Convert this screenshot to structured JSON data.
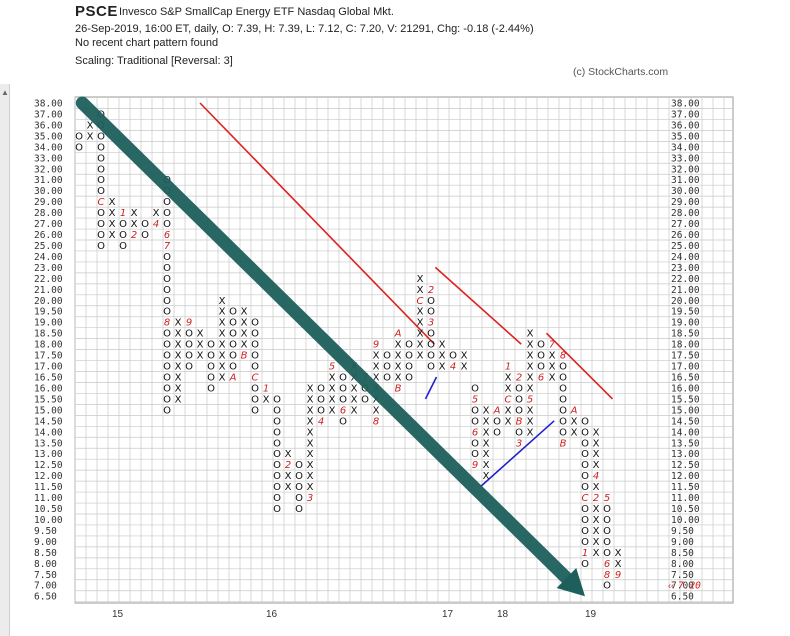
{
  "header": {
    "symbol": "PSCE",
    "description": "Invesco S&P SmallCap Energy ETF  Nasdaq Global Mkt.",
    "line1": "26-Sep-2019, 16:00 ET, daily, O: 7.39, H: 7.39, L: 7.12, C: 7.20, V: 21291, Chg: -0.18 (-2.44%)",
    "line2": "No recent chart pattern found",
    "line3": "Scaling: Traditional [Reversal: 3]",
    "copyright": "(c) StockCharts.com"
  },
  "icons": {
    "left_tab": "caret-up-icon"
  },
  "chart_data": {
    "type": "point-and-figure",
    "title": "PSCE",
    "reversal": 3,
    "scaling": "Traditional",
    "y_ticks": [
      "38.00",
      "37.00",
      "36.00",
      "35.00",
      "34.00",
      "33.00",
      "32.00",
      "31.00",
      "30.00",
      "29.00",
      "28.00",
      "27.00",
      "26.00",
      "25.00",
      "24.00",
      "23.00",
      "22.00",
      "21.00",
      "20.00",
      "19.50",
      "19.00",
      "18.50",
      "18.00",
      "17.50",
      "17.00",
      "16.50",
      "16.00",
      "15.50",
      "15.00",
      "14.50",
      "14.00",
      "13.50",
      "13.00",
      "12.50",
      "12.00",
      "11.50",
      "11.00",
      "10.50",
      "10.00",
      "9.50",
      "9.00",
      "8.50",
      "8.00",
      "7.50",
      "7.00",
      "6.50"
    ],
    "x_labels": [
      {
        "label": "15",
        "col": 3
      },
      {
        "label": "16",
        "col": 17
      },
      {
        "label": "17",
        "col": 33
      },
      {
        "label": "18",
        "col": 38
      },
      {
        "label": "19",
        "col": 46
      }
    ],
    "last_price_label": "7.20",
    "last_price_level": 44,
    "columns": [
      {
        "type": "O",
        "top": 35.0,
        "bottom": 34.0,
        "marks": {}
      },
      {
        "type": "X",
        "top": 36.0,
        "bottom": 35.0,
        "marks": {}
      },
      {
        "type": "O",
        "top": 37.0,
        "bottom": 25.0,
        "marks": {
          "29.00": "C"
        }
      },
      {
        "type": "X",
        "top": 29.0,
        "bottom": 26.0,
        "marks": {}
      },
      {
        "type": "O",
        "top": 28.0,
        "bottom": 25.0,
        "marks": {
          "28.00": "1"
        }
      },
      {
        "type": "X",
        "top": 28.0,
        "bottom": 26.0,
        "marks": {
          "26.00": "2"
        }
      },
      {
        "type": "O",
        "top": 27.0,
        "bottom": 26.0,
        "marks": {
          "28.00": "3"
        }
      },
      {
        "type": "X",
        "top": 28.0,
        "bottom": 27.0,
        "marks": {
          "27.00": "4"
        }
      },
      {
        "type": "O",
        "top": 31.0,
        "bottom": 15.0,
        "marks": {
          "26.00": "6",
          "25.00": "7",
          "19.00": "8"
        }
      },
      {
        "type": "X",
        "top": 19.0,
        "bottom": 15.5,
        "marks": {}
      },
      {
        "type": "O",
        "top": 19.0,
        "bottom": 17.0,
        "marks": {
          "19.00": "9"
        }
      },
      {
        "type": "X",
        "top": 18.5,
        "bottom": 17.5,
        "marks": {}
      },
      {
        "type": "O",
        "top": 18.0,
        "bottom": 16.0,
        "marks": {}
      },
      {
        "type": "X",
        "top": 20.0,
        "bottom": 16.5,
        "marks": {}
      },
      {
        "type": "O",
        "top": 19.5,
        "bottom": 16.5,
        "marks": {
          "16.50": "A"
        }
      },
      {
        "type": "X",
        "top": 19.5,
        "bottom": 17.5,
        "marks": {
          "17.50": "B"
        }
      },
      {
        "type": "O",
        "top": 19.0,
        "bottom": 15.0,
        "marks": {
          "16.50": "C"
        }
      },
      {
        "type": "X",
        "top": 16.0,
        "bottom": 15.5,
        "marks": {
          "16.00": "1"
        }
      },
      {
        "type": "O",
        "top": 15.5,
        "bottom": 10.5,
        "marks": {}
      },
      {
        "type": "X",
        "top": 13.0,
        "bottom": 11.5,
        "marks": {
          "12.50": "2"
        }
      },
      {
        "type": "O",
        "top": 12.5,
        "bottom": 10.5,
        "marks": {}
      },
      {
        "type": "X",
        "top": 16.0,
        "bottom": 11.0,
        "marks": {
          "11.00": "3"
        }
      },
      {
        "type": "O",
        "top": 16.0,
        "bottom": 14.5,
        "marks": {
          "14.50": "4"
        }
      },
      {
        "type": "X",
        "top": 17.0,
        "bottom": 15.0,
        "marks": {
          "17.00": "5"
        }
      },
      {
        "type": "O",
        "top": 16.5,
        "bottom": 14.5,
        "marks": {
          "15.00": "6"
        }
      },
      {
        "type": "X",
        "top": 17.0,
        "bottom": 15.0,
        "marks": {}
      },
      {
        "type": "O",
        "top": 16.5,
        "bottom": 15.5,
        "marks": {
          "16.50": "7"
        }
      },
      {
        "type": "X",
        "top": 18.0,
        "bottom": 14.5,
        "marks": {
          "14.50": "8",
          "18.00": "9"
        }
      },
      {
        "type": "O",
        "top": 17.5,
        "bottom": 16.5,
        "marks": {}
      },
      {
        "type": "X",
        "top": 18.5,
        "bottom": 16.0,
        "marks": {
          "18.50": "A",
          "16.00": "B"
        }
      },
      {
        "type": "O",
        "top": 18.0,
        "bottom": 16.5,
        "marks": {}
      },
      {
        "type": "X",
        "top": 22.0,
        "bottom": 17.5,
        "marks": {
          "20.00": "C"
        }
      },
      {
        "type": "O",
        "top": 21.0,
        "bottom": 17.0,
        "marks": {
          "21.00": "2",
          "19.00": "3"
        }
      },
      {
        "type": "X",
        "top": 18.0,
        "bottom": 17.0,
        "marks": {}
      },
      {
        "type": "O",
        "top": 17.5,
        "bottom": 17.0,
        "marks": {
          "17.00": "4"
        }
      },
      {
        "type": "X",
        "top": 17.5,
        "bottom": 17.0,
        "marks": {}
      },
      {
        "type": "O",
        "top": 16.0,
        "bottom": 12.5,
        "marks": {
          "15.50": "5",
          "14.00": "6",
          "12.50": "9"
        }
      },
      {
        "type": "X",
        "top": 15.0,
        "bottom": 12.0,
        "marks": {}
      },
      {
        "type": "O",
        "top": 15.0,
        "bottom": 14.0,
        "marks": {
          "15.00": "A"
        }
      },
      {
        "type": "X",
        "top": 17.0,
        "bottom": 14.5,
        "marks": {
          "17.00": "1",
          "15.50": "C"
        }
      },
      {
        "type": "O",
        "top": 16.5,
        "bottom": 13.5,
        "marks": {
          "16.50": "2",
          "14.50": "B",
          "13.50": "3"
        }
      },
      {
        "type": "X",
        "top": 18.5,
        "bottom": 14.0,
        "marks": {
          "15.50": "5"
        }
      },
      {
        "type": "O",
        "top": 18.0,
        "bottom": 16.5,
        "marks": {
          "16.50": "6"
        }
      },
      {
        "type": "X",
        "top": 18.0,
        "bottom": 16.5,
        "marks": {
          "18.00": "7"
        }
      },
      {
        "type": "O",
        "top": 17.5,
        "bottom": 13.5,
        "marks": {
          "17.50": "8",
          "13.50": "B"
        }
      },
      {
        "type": "X",
        "top": 15.0,
        "bottom": 14.0,
        "marks": {
          "15.00": "A"
        }
      },
      {
        "type": "O",
        "top": 14.5,
        "bottom": 8.0,
        "marks": {
          "11.00": "C",
          "8.50": "1"
        }
      },
      {
        "type": "X",
        "top": 14.0,
        "bottom": 8.5,
        "marks": {
          "12.00": "4",
          "11.00": "2"
        }
      },
      {
        "type": "O",
        "top": 11.0,
        "bottom": 7.0,
        "marks": {
          "11.00": "5",
          "8.00": "6",
          "7.50": "8"
        }
      },
      {
        "type": "X",
        "top": 8.5,
        "bottom": 7.5,
        "marks": {
          "7.50": "9"
        }
      }
    ],
    "trendlines": [
      {
        "color": "#dd2222",
        "x1": 11,
        "y1": "38.00",
        "x2": 32.3,
        "y2": "18.00"
      },
      {
        "color": "#dd2222",
        "x1": 32.4,
        "y1": "23.00",
        "x2": 40.2,
        "y2": "18.00"
      },
      {
        "color": "#dd2222",
        "x1": 42.5,
        "y1": "18.50",
        "x2": 48.5,
        "y2": "15.50"
      },
      {
        "color": "#2222cc",
        "x1": 31.5,
        "y1": "15.50",
        "x2": 32.5,
        "y2": "16.50"
      },
      {
        "color": "#2222cc",
        "x1": 36.5,
        "y1": "11.50",
        "x2": 43.2,
        "y2": "14.50"
      }
    ],
    "annotation_arrow": {
      "color": "#1e5f5c",
      "from": [
        0.3,
        "38.00"
      ],
      "to": [
        46,
        "6.50"
      ]
    }
  }
}
